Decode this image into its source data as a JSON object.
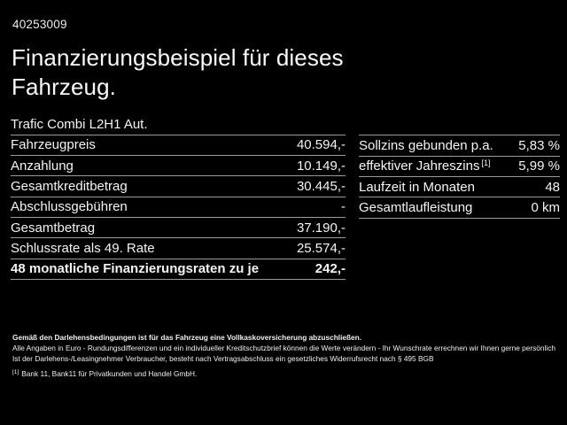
{
  "theme": {
    "background": "#000000",
    "text": "#f4f4f4",
    "divider": "#9a9a9a"
  },
  "header": {
    "vehicle_id": "40253009",
    "title": "Finanzierungsbeispiel für dieses Fahrzeug."
  },
  "vehicle": {
    "model": "Trafic Combi L2H1 Aut."
  },
  "financing_table": {
    "rows": [
      {
        "label": "Fahrzeugpreis",
        "value": "40.594,-"
      },
      {
        "label": "Anzahlung",
        "value": "10.149,-"
      },
      {
        "label": "Gesamtkreditbetrag",
        "value": "30.445,-"
      },
      {
        "label": "Abschlussgebühren",
        "value": "-"
      },
      {
        "label": "Gesamtbetrag",
        "value": "37.190,-"
      },
      {
        "label": "Schlussrate als 49. Rate",
        "value": "25.574,-"
      },
      {
        "label": "48 monatliche Finanzierungsraten zu je",
        "value": "242,-"
      }
    ]
  },
  "conditions_table": {
    "rows": [
      {
        "label": "Sollzins gebunden p.a.",
        "sup": "",
        "value": "5,83 %"
      },
      {
        "label": "effektiver Jahreszins",
        "sup": "[1]",
        "value": "5,99 %"
      },
      {
        "label": "Laufzeit in Monaten",
        "sup": "",
        "value": "48"
      },
      {
        "label": "Gesamtlaufleistung",
        "sup": "",
        "value": "0 km"
      }
    ]
  },
  "footer": {
    "line1": "Gemäß den Darlehensbedingungen ist für das Fahrzeug eine Vollkaskoversicherung abzuschließen.",
    "line2": "Alle Angaben in Euro - Rundungsdifferenzen und ein individueller Kreditschutzbrief können die Werte verändern - Ihr Wunschrate errechnen wir Ihnen gerne persönlich",
    "line3": "Ist der Darlehens-/Leasingnehmer Verbraucher, besteht nach Vertragsabschluss ein gesetzliches Widerrufsrecht nach § 495 BGB",
    "footnote_marker": "[1]",
    "footnote_text": "Bank 11, Bank11 für Privatkunden und Handel GmbH."
  }
}
